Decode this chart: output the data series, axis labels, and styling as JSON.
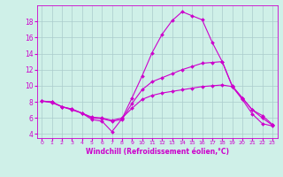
{
  "xlabel": "Windchill (Refroidissement éolien,°C)",
  "ylabel": "",
  "background_color": "#cff0e8",
  "line_color": "#cc00cc",
  "grid_color": "#aacccc",
  "xlim": [
    -0.5,
    23.5
  ],
  "ylim": [
    3.5,
    20.0
  ],
  "xticks": [
    0,
    1,
    2,
    3,
    4,
    5,
    6,
    7,
    8,
    9,
    10,
    11,
    12,
    13,
    14,
    15,
    16,
    17,
    18,
    19,
    20,
    21,
    22,
    23
  ],
  "yticks": [
    4,
    6,
    8,
    10,
    12,
    14,
    16,
    18
  ],
  "series": [
    [
      8.1,
      8.0,
      7.4,
      7.1,
      6.6,
      5.8,
      5.6,
      4.3,
      5.9,
      8.5,
      11.2,
      14.1,
      16.4,
      18.1,
      19.2,
      18.7,
      18.2,
      15.4,
      13.0,
      9.9,
      8.3,
      6.5,
      5.3,
      5.0
    ],
    [
      8.1,
      8.0,
      7.4,
      7.1,
      6.6,
      6.0,
      5.9,
      5.6,
      5.8,
      7.8,
      9.5,
      10.5,
      11.0,
      11.5,
      12.0,
      12.4,
      12.8,
      12.9,
      13.0,
      10.0,
      8.5,
      7.0,
      6.0,
      5.1
    ],
    [
      8.1,
      7.9,
      7.4,
      7.0,
      6.6,
      6.1,
      6.0,
      5.7,
      6.0,
      7.2,
      8.3,
      8.8,
      9.1,
      9.3,
      9.5,
      9.7,
      9.9,
      10.0,
      10.1,
      9.9,
      8.5,
      7.0,
      6.3,
      5.2
    ]
  ],
  "marker": "D",
  "markersize": 2.0,
  "linewidth": 0.8,
  "xlabel_fontsize": 5.5,
  "tick_fontsize_x": 4.5,
  "tick_fontsize_y": 5.5
}
